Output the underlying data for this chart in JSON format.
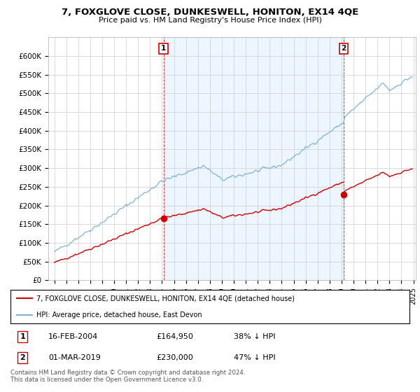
{
  "title": "7, FOXGLOVE CLOSE, DUNKESWELL, HONITON, EX14 4QE",
  "subtitle": "Price paid vs. HM Land Registry's House Price Index (HPI)",
  "ylabel_ticks": [
    "£0",
    "£50K",
    "£100K",
    "£150K",
    "£200K",
    "£250K",
    "£300K",
    "£350K",
    "£400K",
    "£450K",
    "£500K",
    "£550K",
    "£600K"
  ],
  "ytick_values": [
    0,
    50000,
    100000,
    150000,
    200000,
    250000,
    300000,
    350000,
    400000,
    450000,
    500000,
    550000,
    600000
  ],
  "ylim": [
    0,
    650000
  ],
  "xlim_start": 1994.5,
  "xlim_end": 2025.2,
  "hpi_color": "#7fb3d3",
  "price_color": "#cc0000",
  "dashed_line_color": "#cc0000",
  "shade_color": "#ddeeff",
  "sale1_year": 2004.12,
  "sale1_price": 164950,
  "sale1_label": "1",
  "sale2_year": 2019.17,
  "sale2_price": 230000,
  "sale2_label": "2",
  "legend_line1": "7, FOXGLOVE CLOSE, DUNKESWELL, HONITON, EX14 4QE (detached house)",
  "legend_line2": "HPI: Average price, detached house, East Devon",
  "table_row1": [
    "1",
    "16-FEB-2004",
    "£164,950",
    "38% ↓ HPI"
  ],
  "table_row2": [
    "2",
    "01-MAR-2019",
    "£230,000",
    "47% ↓ HPI"
  ],
  "footer": "Contains HM Land Registry data © Crown copyright and database right 2024.\nThis data is licensed under the Open Government Licence v3.0.",
  "background_color": "#ffffff",
  "grid_color": "#cccccc"
}
